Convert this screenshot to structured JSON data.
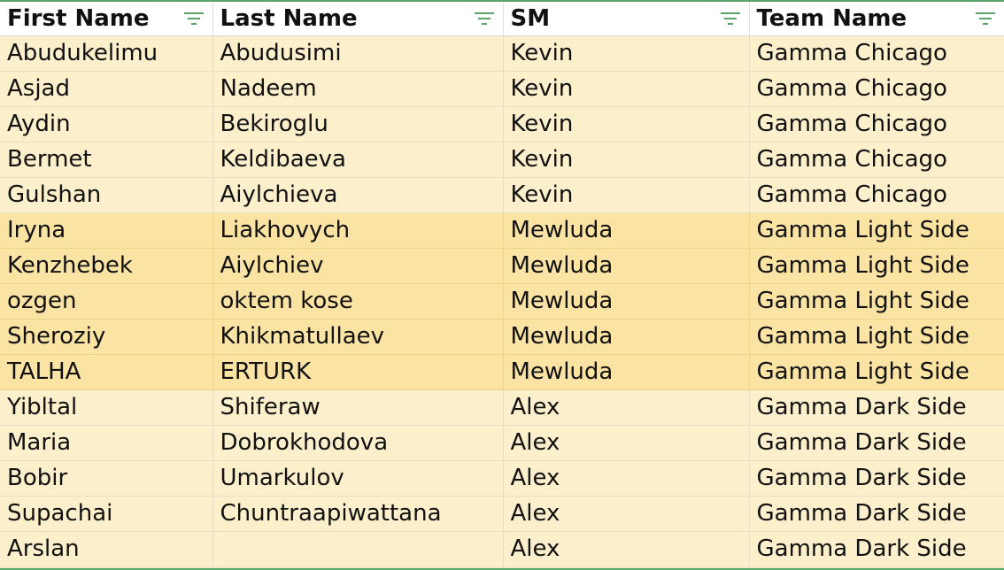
{
  "sheet": {
    "columns": [
      {
        "label": "First Name",
        "filter_icon": "filter-icon"
      },
      {
        "label": "Last Name",
        "filter_icon": "filter-icon"
      },
      {
        "label": "SM",
        "filter_icon": "filter-icon"
      },
      {
        "label": "Team Name",
        "filter_icon": "filter-icon"
      }
    ],
    "rows": [
      {
        "first": "Abudukelimu",
        "last": "Abudusimi",
        "sm": "Kevin",
        "team": "Gamma Chicago",
        "band": "a"
      },
      {
        "first": "Asjad",
        "last": "Nadeem",
        "sm": "Kevin",
        "team": "Gamma Chicago",
        "band": "a"
      },
      {
        "first": "Aydin",
        "last": "Bekiroglu",
        "sm": "Kevin",
        "team": "Gamma Chicago",
        "band": "a"
      },
      {
        "first": "Bermet",
        "last": "Keldibaeva",
        "sm": "Kevin",
        "team": "Gamma Chicago",
        "band": "a"
      },
      {
        "first": "Gulshan",
        "last": "Aiylchieva",
        "sm": "Kevin",
        "team": "Gamma Chicago",
        "band": "a"
      },
      {
        "first": "Iryna",
        "last": "Liakhovych",
        "sm": "Mewluda",
        "team": "Gamma Light Side",
        "band": "b"
      },
      {
        "first": "Kenzhebek",
        "last": "Aiylchiev",
        "sm": "Mewluda",
        "team": "Gamma Light Side",
        "band": "b"
      },
      {
        "first": "ozgen",
        "last": "oktem kose",
        "sm": "Mewluda",
        "team": "Gamma Light Side",
        "band": "b"
      },
      {
        "first": "Sheroziy",
        "last": "Khikmatullaev",
        "sm": "Mewluda",
        "team": "Gamma Light Side",
        "band": "b"
      },
      {
        "first": "TALHA",
        "last": "ERTURK",
        "sm": "Mewluda",
        "team": "Gamma Light Side",
        "band": "b"
      },
      {
        "first": "Yibltal",
        "last": "Shiferaw",
        "sm": "Alex",
        "team": "Gamma Dark Side",
        "band": "a"
      },
      {
        "first": "Maria",
        "last": "Dobrokhodova",
        "sm": "Alex",
        "team": "Gamma Dark Side",
        "band": "a"
      },
      {
        "first": "Bobir",
        "last": "Umarkulov",
        "sm": "Alex",
        "team": "Gamma Dark Side",
        "band": "a"
      },
      {
        "first": "Supachai",
        "last": "Chuntraapiwattana",
        "sm": "Alex",
        "team": "Gamma Dark Side",
        "band": "a"
      },
      {
        "first": "Arslan",
        "last": "",
        "sm": "Alex",
        "team": "Gamma Dark Side",
        "band": "a"
      }
    ],
    "colors": {
      "accent": "#5aa469",
      "band_a": "#fcf0cc",
      "band_b": "#fae3a3",
      "header_bg": "#ffffff"
    }
  }
}
